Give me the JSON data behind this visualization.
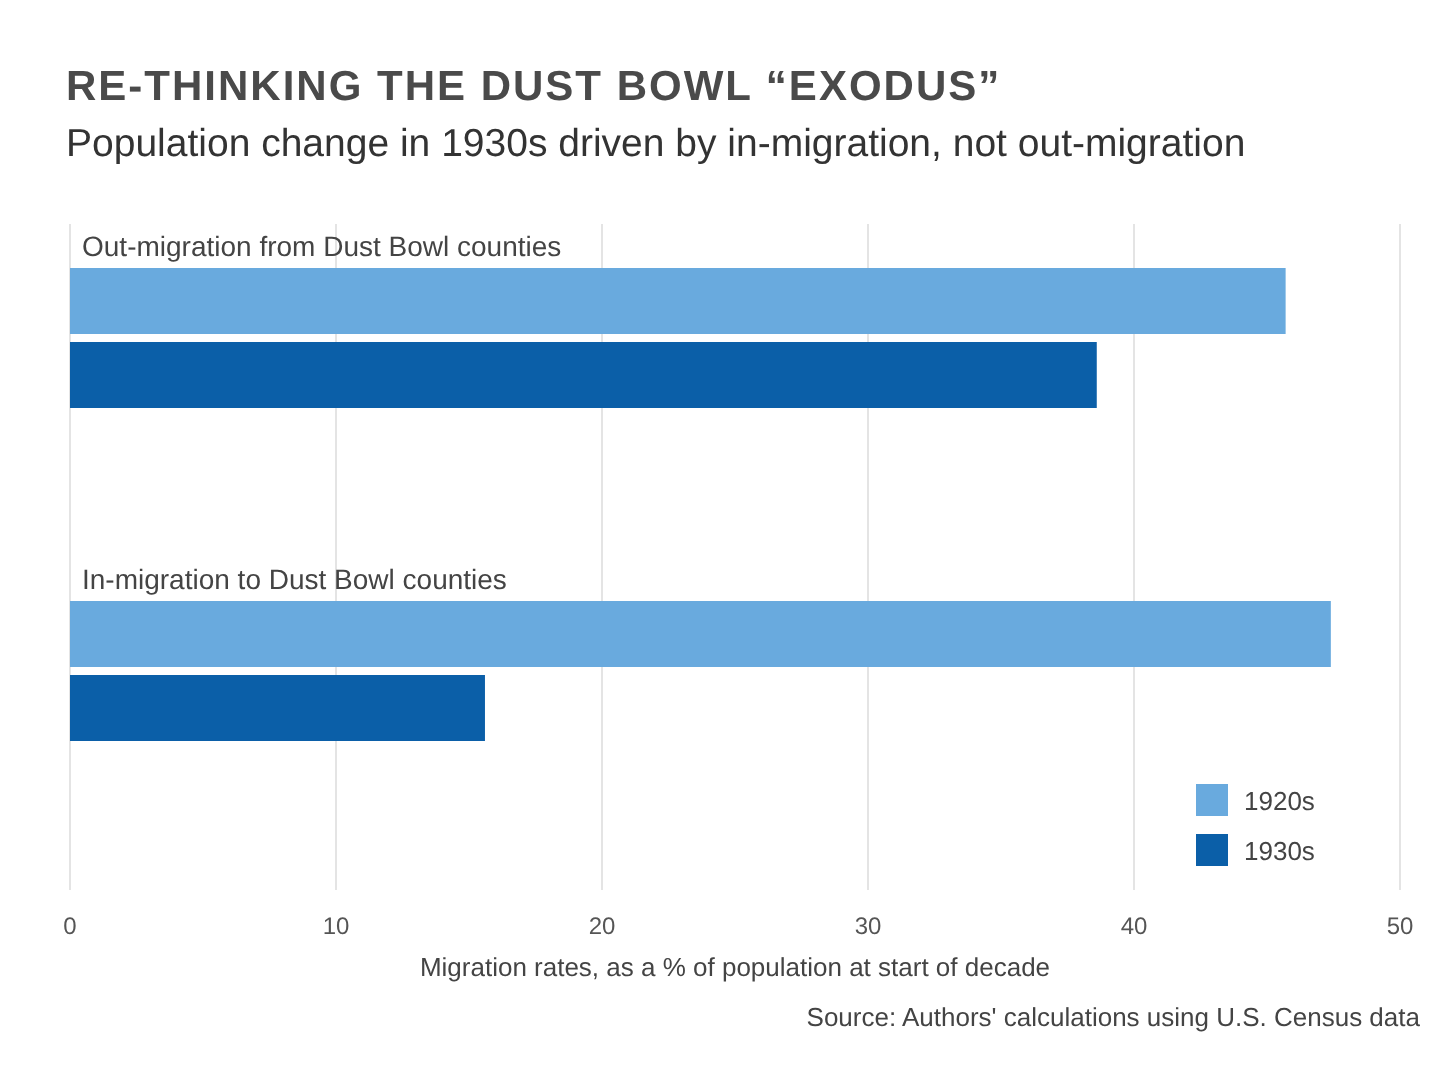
{
  "chart_data": {
    "type": "bar",
    "orientation": "horizontal",
    "title": "RE-THINKING THE DUST BOWL “EXODUS”",
    "subtitle": "Population change in 1930s driven by in-migration, not out-migration",
    "xlabel": "Migration rates, as a % of population at start of decade",
    "categories": [
      "Out-migration from Dust Bowl counties",
      "In-migration to Dust Bowl counties"
    ],
    "series": [
      {
        "name": "1920s",
        "color": "#69aade",
        "values": [
          45.7,
          47.4
        ]
      },
      {
        "name": "1930s",
        "color": "#0b5fa8",
        "values": [
          38.6,
          15.6
        ]
      }
    ],
    "xlim": [
      0,
      50
    ],
    "xticks": [
      0,
      10,
      20,
      30,
      40,
      50
    ],
    "grid": "x",
    "legend": "bottom right",
    "annotations": [
      "Source: Authors' calculations using U.S. Census data"
    ]
  }
}
